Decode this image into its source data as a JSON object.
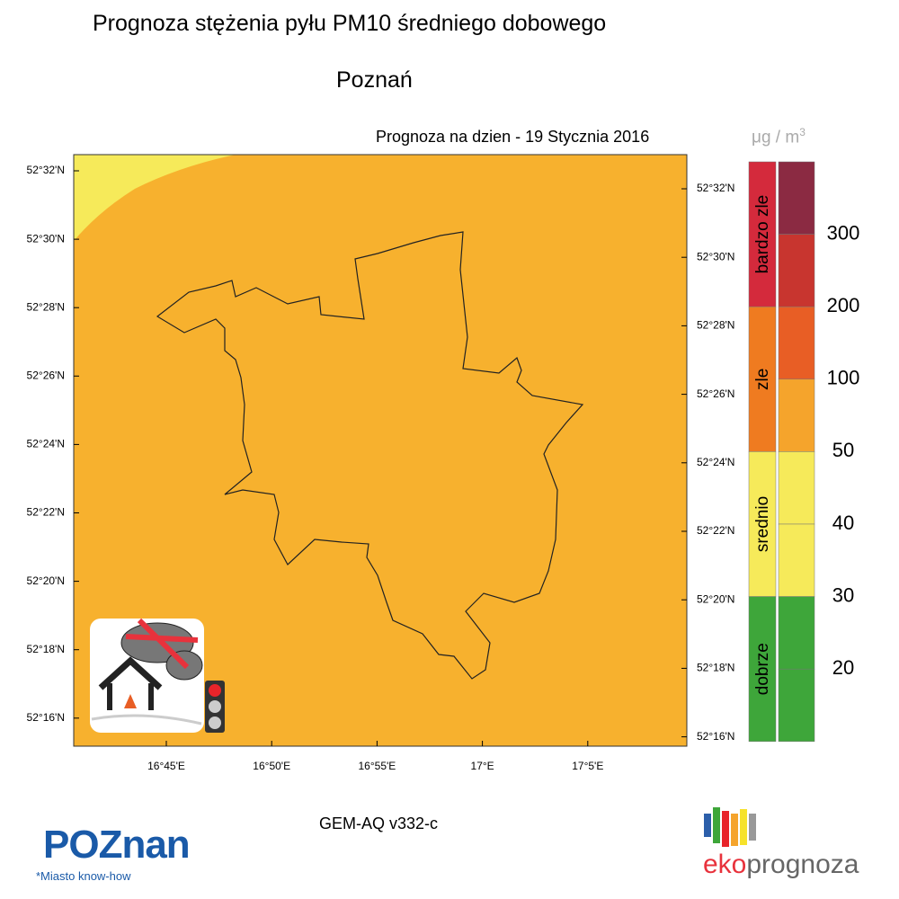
{
  "header": {
    "title": "Prognoza stężenia pyłu PM10 średniego dobowego",
    "city": "Poznań",
    "date": "Prognoza na dzien -  19 Stycznia 2016"
  },
  "map": {
    "fill_color": "#f7b12e",
    "patch_color": "#f6ea5a",
    "left_lat_labels": [
      "52°32'N",
      "52°30'N",
      "52°28'N",
      "52°26'N",
      "52°24'N",
      "52°22'N",
      "52°20'N",
      "52°18'N",
      "52°16'N"
    ],
    "right_lat_labels": [
      "52°32'N",
      "52°30'N",
      "52°28'N",
      "52°26'N",
      "52°24'N",
      "52°22'N",
      "52°20'N",
      "52°18'N",
      "52°16'N"
    ],
    "lon_labels": [
      "16°45'E",
      "16°50'E",
      "16°55'E",
      "17°E",
      "17°5'E"
    ]
  },
  "legend": {
    "unit": "μg / m",
    "unit_exponent": "3",
    "categories": [
      {
        "name": "bardzo zle",
        "color": "#d42a3c"
      },
      {
        "name": "zle",
        "color": "#ef7b20"
      },
      {
        "name": "srednio",
        "color": "#f6ea5a"
      },
      {
        "name": "dobrze",
        "color": "#3ea63a"
      }
    ],
    "bin_colors": [
      "#8b2a42",
      "#c8352f",
      "#e85e25",
      "#f5a42c",
      "#f6ea5a",
      "#f6ea5a",
      "#3ea63a",
      "#3ea63a"
    ],
    "thresholds": [
      "300",
      "200",
      "100",
      "50",
      "40",
      "30",
      "20"
    ]
  },
  "footer": {
    "model": "GEM-AQ v332-c",
    "logo_left": "POZnan",
    "logo_left_tagline": "*Miasto know-how",
    "logo_right_a": "eko",
    "logo_right_b": "prognoza"
  }
}
